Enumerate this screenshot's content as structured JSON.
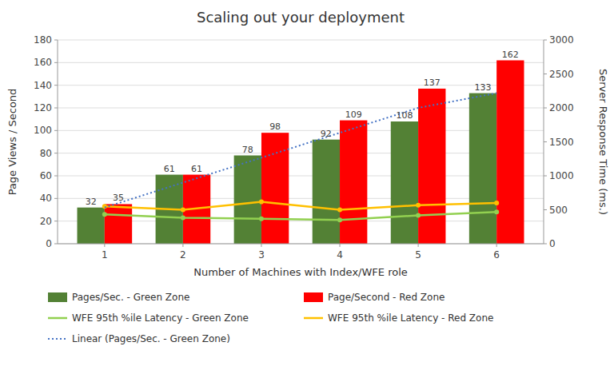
{
  "chart_data": {
    "type": "bar",
    "title": "Scaling out your deployment",
    "x_label": "Number  of Machines with Index/WFE role",
    "y_label": "Page Views / Second",
    "y2_label": "Server Response Time (ms.)",
    "x": [
      1,
      2,
      3,
      4,
      5,
      6
    ],
    "xlim": [
      0.4,
      6.6
    ],
    "xticks": [
      1,
      2,
      3,
      4,
      5,
      6
    ],
    "ylim": [
      0,
      180
    ],
    "yticks": [
      0,
      20,
      40,
      60,
      80,
      100,
      120,
      140,
      160,
      180
    ],
    "y2lim": [
      0,
      3000
    ],
    "y2ticks": [
      0,
      500,
      1000,
      1500,
      2000,
      2500,
      3000
    ],
    "grid": "y",
    "legend": "bottom",
    "series": [
      {
        "name": "Pages/Sec. - Green Zone",
        "type": "bar",
        "color": "#538135",
        "data_labels": true,
        "values": [
          32,
          61,
          78,
          92,
          108,
          133
        ]
      },
      {
        "name": "Page/Second - Red Zone",
        "type": "bar",
        "color": "#FF0000",
        "data_labels": true,
        "values": [
          35,
          61,
          98,
          109,
          137,
          162
        ]
      },
      {
        "name": "WFE 95th %ile Latency - Green Zone",
        "type": "line",
        "color": "#92D050",
        "marker": "circle",
        "values": [
          26,
          23,
          22,
          21,
          25,
          28
        ]
      },
      {
        "name": "WFE 95th %ile Latency - Red Zone",
        "type": "line",
        "color": "#FFC000",
        "marker": "circle",
        "values": [
          33,
          30,
          37,
          30,
          34,
          36
        ]
      },
      {
        "name": "Linear (Pages/Sec. - Green Zone)",
        "type": "line",
        "color": "#4472C4",
        "line_style": "dotted",
        "values": [
          32,
          54,
          76,
          98,
          120,
          133
        ]
      }
    ]
  }
}
